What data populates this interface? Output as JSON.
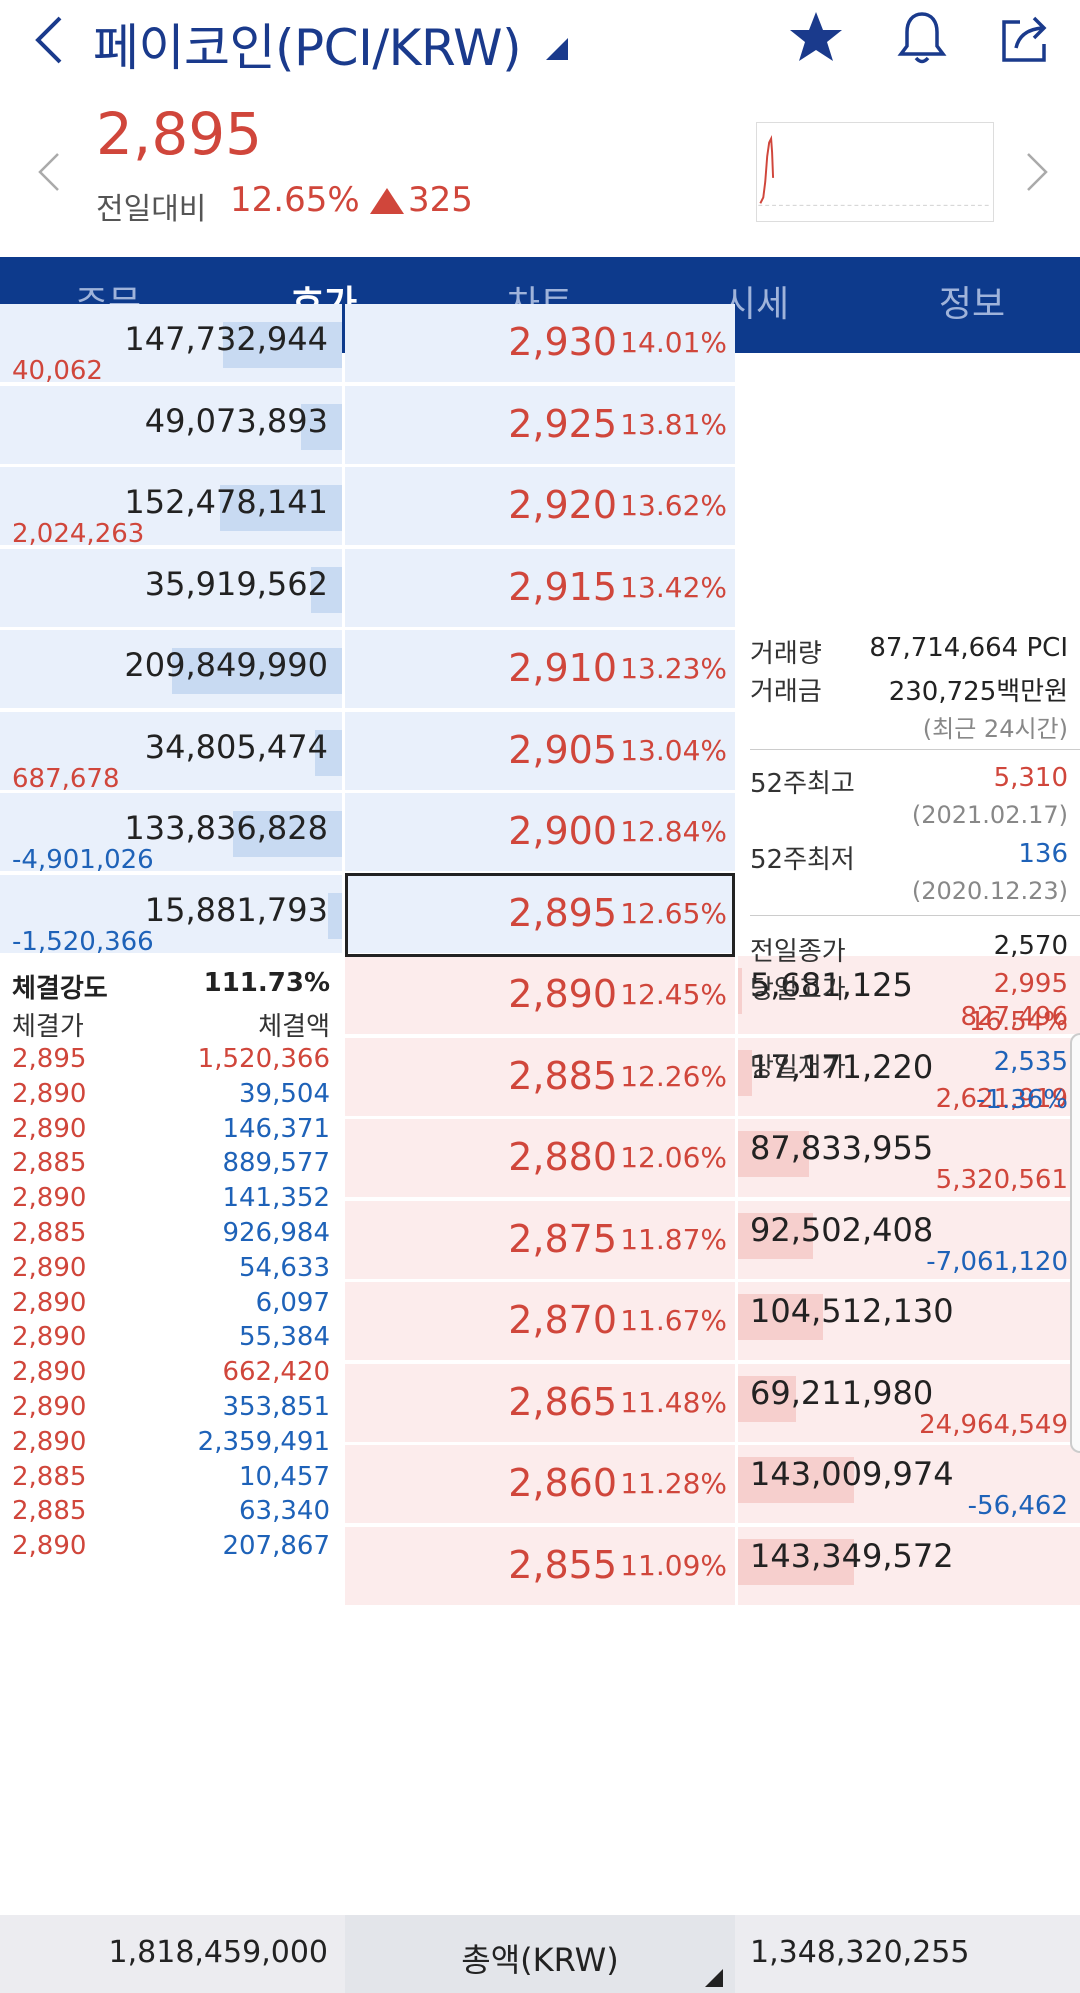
{
  "header": {
    "title": "페이코인(PCI/KRW)",
    "icons": [
      "back-icon",
      "dropdown-caret-icon",
      "star-icon",
      "bell-icon",
      "share-icon"
    ]
  },
  "summary": {
    "price": "2,895",
    "change_label": "전일대비",
    "change_pct": "12.65%",
    "change_amount": "325"
  },
  "tabs": [
    {
      "label": "주문",
      "active": false
    },
    {
      "label": "호가",
      "active": true
    },
    {
      "label": "차트",
      "active": false
    },
    {
      "label": "시세",
      "active": false
    },
    {
      "label": "정보",
      "active": false
    }
  ],
  "asks": [
    {
      "qty": "147,732,944",
      "delta": "40,062",
      "delta_color": "red",
      "price": "2,930",
      "pct": "14.01%",
      "bar": 0.35
    },
    {
      "qty": "49,073,893",
      "delta": "",
      "delta_color": "red",
      "price": "2,925",
      "pct": "13.81%",
      "bar": 0.12
    },
    {
      "qty": "152,478,141",
      "delta": "2,024,263",
      "delta_color": "red",
      "price": "2,920",
      "pct": "13.62%",
      "bar": 0.36
    },
    {
      "qty": "35,919,562",
      "delta": "",
      "delta_color": "red",
      "price": "2,915",
      "pct": "13.42%",
      "bar": 0.09
    },
    {
      "qty": "209,849,990",
      "delta": "",
      "delta_color": "red",
      "price": "2,910",
      "pct": "13.23%",
      "bar": 0.5
    },
    {
      "qty": "34,805,474",
      "delta": "687,678",
      "delta_color": "red",
      "price": "2,905",
      "pct": "13.04%",
      "bar": 0.08
    },
    {
      "qty": "133,836,828",
      "delta": "-4,901,026",
      "delta_color": "blue",
      "price": "2,900",
      "pct": "12.84%",
      "bar": 0.32
    },
    {
      "qty": "15,881,793",
      "delta": "-1,520,366",
      "delta_color": "blue",
      "price": "2,895",
      "pct": "12.65%",
      "bar": 0.04
    }
  ],
  "bids": [
    {
      "qty": "5,681,125",
      "delta": "827,496",
      "delta_color": "red",
      "price": "2,890",
      "pct": "12.45%",
      "bar": 0.01
    },
    {
      "qty": "17,171,220",
      "delta": "2,621,919",
      "delta_color": "red",
      "price": "2,885",
      "pct": "12.26%",
      "bar": 0.04
    },
    {
      "qty": "87,833,955",
      "delta": "5,320,561",
      "delta_color": "red",
      "price": "2,880",
      "pct": "12.06%",
      "bar": 0.21
    },
    {
      "qty": "92,502,408",
      "delta": "-7,061,120",
      "delta_color": "blue",
      "price": "2,875",
      "pct": "11.87%",
      "bar": 0.22
    },
    {
      "qty": "104,512,130",
      "delta": "",
      "delta_color": "red",
      "price": "2,870",
      "pct": "11.67%",
      "bar": 0.25
    },
    {
      "qty": "69,211,980",
      "delta": "24,964,549",
      "delta_color": "red",
      "price": "2,865",
      "pct": "11.48%",
      "bar": 0.17
    },
    {
      "qty": "143,009,974",
      "delta": "-56,462",
      "delta_color": "blue",
      "price": "2,860",
      "pct": "11.28%",
      "bar": 0.34
    },
    {
      "qty": "143,349,572",
      "delta": "",
      "delta_color": "red",
      "price": "2,855",
      "pct": "11.09%",
      "bar": 0.34
    }
  ],
  "info": {
    "volume_label": "거래량",
    "volume": "87,714,664 PCI",
    "amount_label": "거래금",
    "amount": "230,725백만원",
    "period_note": "(최근 24시간)",
    "high52_label": "52주최고",
    "high52": "5,310",
    "high52_date": "(2021.02.17)",
    "low52_label": "52주최저",
    "low52": "136",
    "low52_date": "(2020.12.23)",
    "prev_close_label": "전일종가",
    "prev_close": "2,570",
    "day_high_label": "당일고가",
    "day_high": "2,995",
    "day_high_pct": "16.54%",
    "day_low_label": "당일저가",
    "day_low": "2,535",
    "day_low_pct": "-1.36%"
  },
  "trades": {
    "strength_label": "체결강도",
    "strength": "111.73%",
    "price_header": "체결가",
    "amount_header": "체결액",
    "rows": [
      {
        "price": "2,895",
        "amount": "1,520,366",
        "color": "red"
      },
      {
        "price": "2,890",
        "amount": "39,504",
        "color": "blue"
      },
      {
        "price": "2,890",
        "amount": "146,371",
        "color": "blue"
      },
      {
        "price": "2,885",
        "amount": "889,577",
        "color": "blue"
      },
      {
        "price": "2,890",
        "amount": "141,352",
        "color": "blue"
      },
      {
        "price": "2,885",
        "amount": "926,984",
        "color": "blue"
      },
      {
        "price": "2,890",
        "amount": "54,633",
        "color": "blue"
      },
      {
        "price": "2,890",
        "amount": "6,097",
        "color": "blue"
      },
      {
        "price": "2,890",
        "amount": "55,384",
        "color": "blue"
      },
      {
        "price": "2,890",
        "amount": "662,420",
        "color": "red"
      },
      {
        "price": "2,890",
        "amount": "353,851",
        "color": "blue"
      },
      {
        "price": "2,890",
        "amount": "2,359,491",
        "color": "blue"
      },
      {
        "price": "2,885",
        "amount": "10,457",
        "color": "blue"
      },
      {
        "price": "2,885",
        "amount": "63,340",
        "color": "blue"
      },
      {
        "price": "2,890",
        "amount": "207,867",
        "color": "blue"
      }
    ]
  },
  "footer": {
    "ask_total": "1,818,459,000",
    "label": "총액(KRW)",
    "bid_total": "1,348,320,255"
  },
  "colors": {
    "up": "#d0463b",
    "down": "#1e62b8",
    "nav": "#0d3a8c"
  }
}
